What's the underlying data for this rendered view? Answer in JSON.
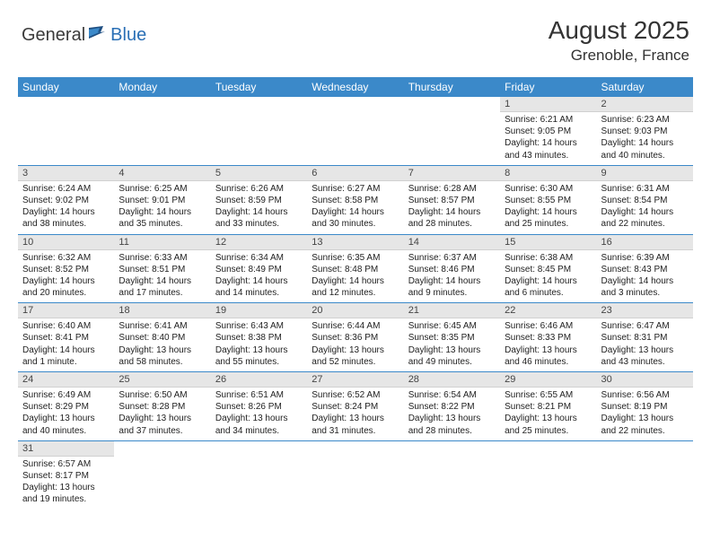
{
  "logo": {
    "general": "General",
    "blue": "Blue"
  },
  "title": {
    "month": "August 2025",
    "location": "Grenoble, France"
  },
  "colors": {
    "header_bg": "#3b89c9",
    "header_text": "#ffffff",
    "daynum_bg": "#e6e6e6",
    "rule": "#3b89c9",
    "flag_dark": "#1f4f82",
    "flag_light": "#3b89c9"
  },
  "dow": [
    "Sunday",
    "Monday",
    "Tuesday",
    "Wednesday",
    "Thursday",
    "Friday",
    "Saturday"
  ],
  "weeks": [
    [
      null,
      null,
      null,
      null,
      null,
      {
        "n": "1",
        "rise": "6:21 AM",
        "set": "9:05 PM",
        "dlh": "14",
        "dlm": "43"
      },
      {
        "n": "2",
        "rise": "6:23 AM",
        "set": "9:03 PM",
        "dlh": "14",
        "dlm": "40"
      }
    ],
    [
      {
        "n": "3",
        "rise": "6:24 AM",
        "set": "9:02 PM",
        "dlh": "14",
        "dlm": "38"
      },
      {
        "n": "4",
        "rise": "6:25 AM",
        "set": "9:01 PM",
        "dlh": "14",
        "dlm": "35"
      },
      {
        "n": "5",
        "rise": "6:26 AM",
        "set": "8:59 PM",
        "dlh": "14",
        "dlm": "33"
      },
      {
        "n": "6",
        "rise": "6:27 AM",
        "set": "8:58 PM",
        "dlh": "14",
        "dlm": "30"
      },
      {
        "n": "7",
        "rise": "6:28 AM",
        "set": "8:57 PM",
        "dlh": "14",
        "dlm": "28"
      },
      {
        "n": "8",
        "rise": "6:30 AM",
        "set": "8:55 PM",
        "dlh": "14",
        "dlm": "25"
      },
      {
        "n": "9",
        "rise": "6:31 AM",
        "set": "8:54 PM",
        "dlh": "14",
        "dlm": "22"
      }
    ],
    [
      {
        "n": "10",
        "rise": "6:32 AM",
        "set": "8:52 PM",
        "dlh": "14",
        "dlm": "20"
      },
      {
        "n": "11",
        "rise": "6:33 AM",
        "set": "8:51 PM",
        "dlh": "14",
        "dlm": "17"
      },
      {
        "n": "12",
        "rise": "6:34 AM",
        "set": "8:49 PM",
        "dlh": "14",
        "dlm": "14"
      },
      {
        "n": "13",
        "rise": "6:35 AM",
        "set": "8:48 PM",
        "dlh": "14",
        "dlm": "12"
      },
      {
        "n": "14",
        "rise": "6:37 AM",
        "set": "8:46 PM",
        "dlh": "14",
        "dlm": "9"
      },
      {
        "n": "15",
        "rise": "6:38 AM",
        "set": "8:45 PM",
        "dlh": "14",
        "dlm": "6"
      },
      {
        "n": "16",
        "rise": "6:39 AM",
        "set": "8:43 PM",
        "dlh": "14",
        "dlm": "3"
      }
    ],
    [
      {
        "n": "17",
        "rise": "6:40 AM",
        "set": "8:41 PM",
        "dlh": "14",
        "dlm": "1",
        "unit": "minute"
      },
      {
        "n": "18",
        "rise": "6:41 AM",
        "set": "8:40 PM",
        "dlh": "13",
        "dlm": "58"
      },
      {
        "n": "19",
        "rise": "6:43 AM",
        "set": "8:38 PM",
        "dlh": "13",
        "dlm": "55"
      },
      {
        "n": "20",
        "rise": "6:44 AM",
        "set": "8:36 PM",
        "dlh": "13",
        "dlm": "52"
      },
      {
        "n": "21",
        "rise": "6:45 AM",
        "set": "8:35 PM",
        "dlh": "13",
        "dlm": "49"
      },
      {
        "n": "22",
        "rise": "6:46 AM",
        "set": "8:33 PM",
        "dlh": "13",
        "dlm": "46"
      },
      {
        "n": "23",
        "rise": "6:47 AM",
        "set": "8:31 PM",
        "dlh": "13",
        "dlm": "43"
      }
    ],
    [
      {
        "n": "24",
        "rise": "6:49 AM",
        "set": "8:29 PM",
        "dlh": "13",
        "dlm": "40"
      },
      {
        "n": "25",
        "rise": "6:50 AM",
        "set": "8:28 PM",
        "dlh": "13",
        "dlm": "37"
      },
      {
        "n": "26",
        "rise": "6:51 AM",
        "set": "8:26 PM",
        "dlh": "13",
        "dlm": "34"
      },
      {
        "n": "27",
        "rise": "6:52 AM",
        "set": "8:24 PM",
        "dlh": "13",
        "dlm": "31"
      },
      {
        "n": "28",
        "rise": "6:54 AM",
        "set": "8:22 PM",
        "dlh": "13",
        "dlm": "28"
      },
      {
        "n": "29",
        "rise": "6:55 AM",
        "set": "8:21 PM",
        "dlh": "13",
        "dlm": "25"
      },
      {
        "n": "30",
        "rise": "6:56 AM",
        "set": "8:19 PM",
        "dlh": "13",
        "dlm": "22"
      }
    ],
    [
      {
        "n": "31",
        "rise": "6:57 AM",
        "set": "8:17 PM",
        "dlh": "13",
        "dlm": "19"
      },
      null,
      null,
      null,
      null,
      null,
      null
    ]
  ],
  "labels": {
    "sunrise": "Sunrise: ",
    "sunset": "Sunset: ",
    "daylight_prefix": "Daylight: ",
    "hours": " hours",
    "and": "and ",
    "minutes": " minutes.",
    "minute": " minute."
  }
}
